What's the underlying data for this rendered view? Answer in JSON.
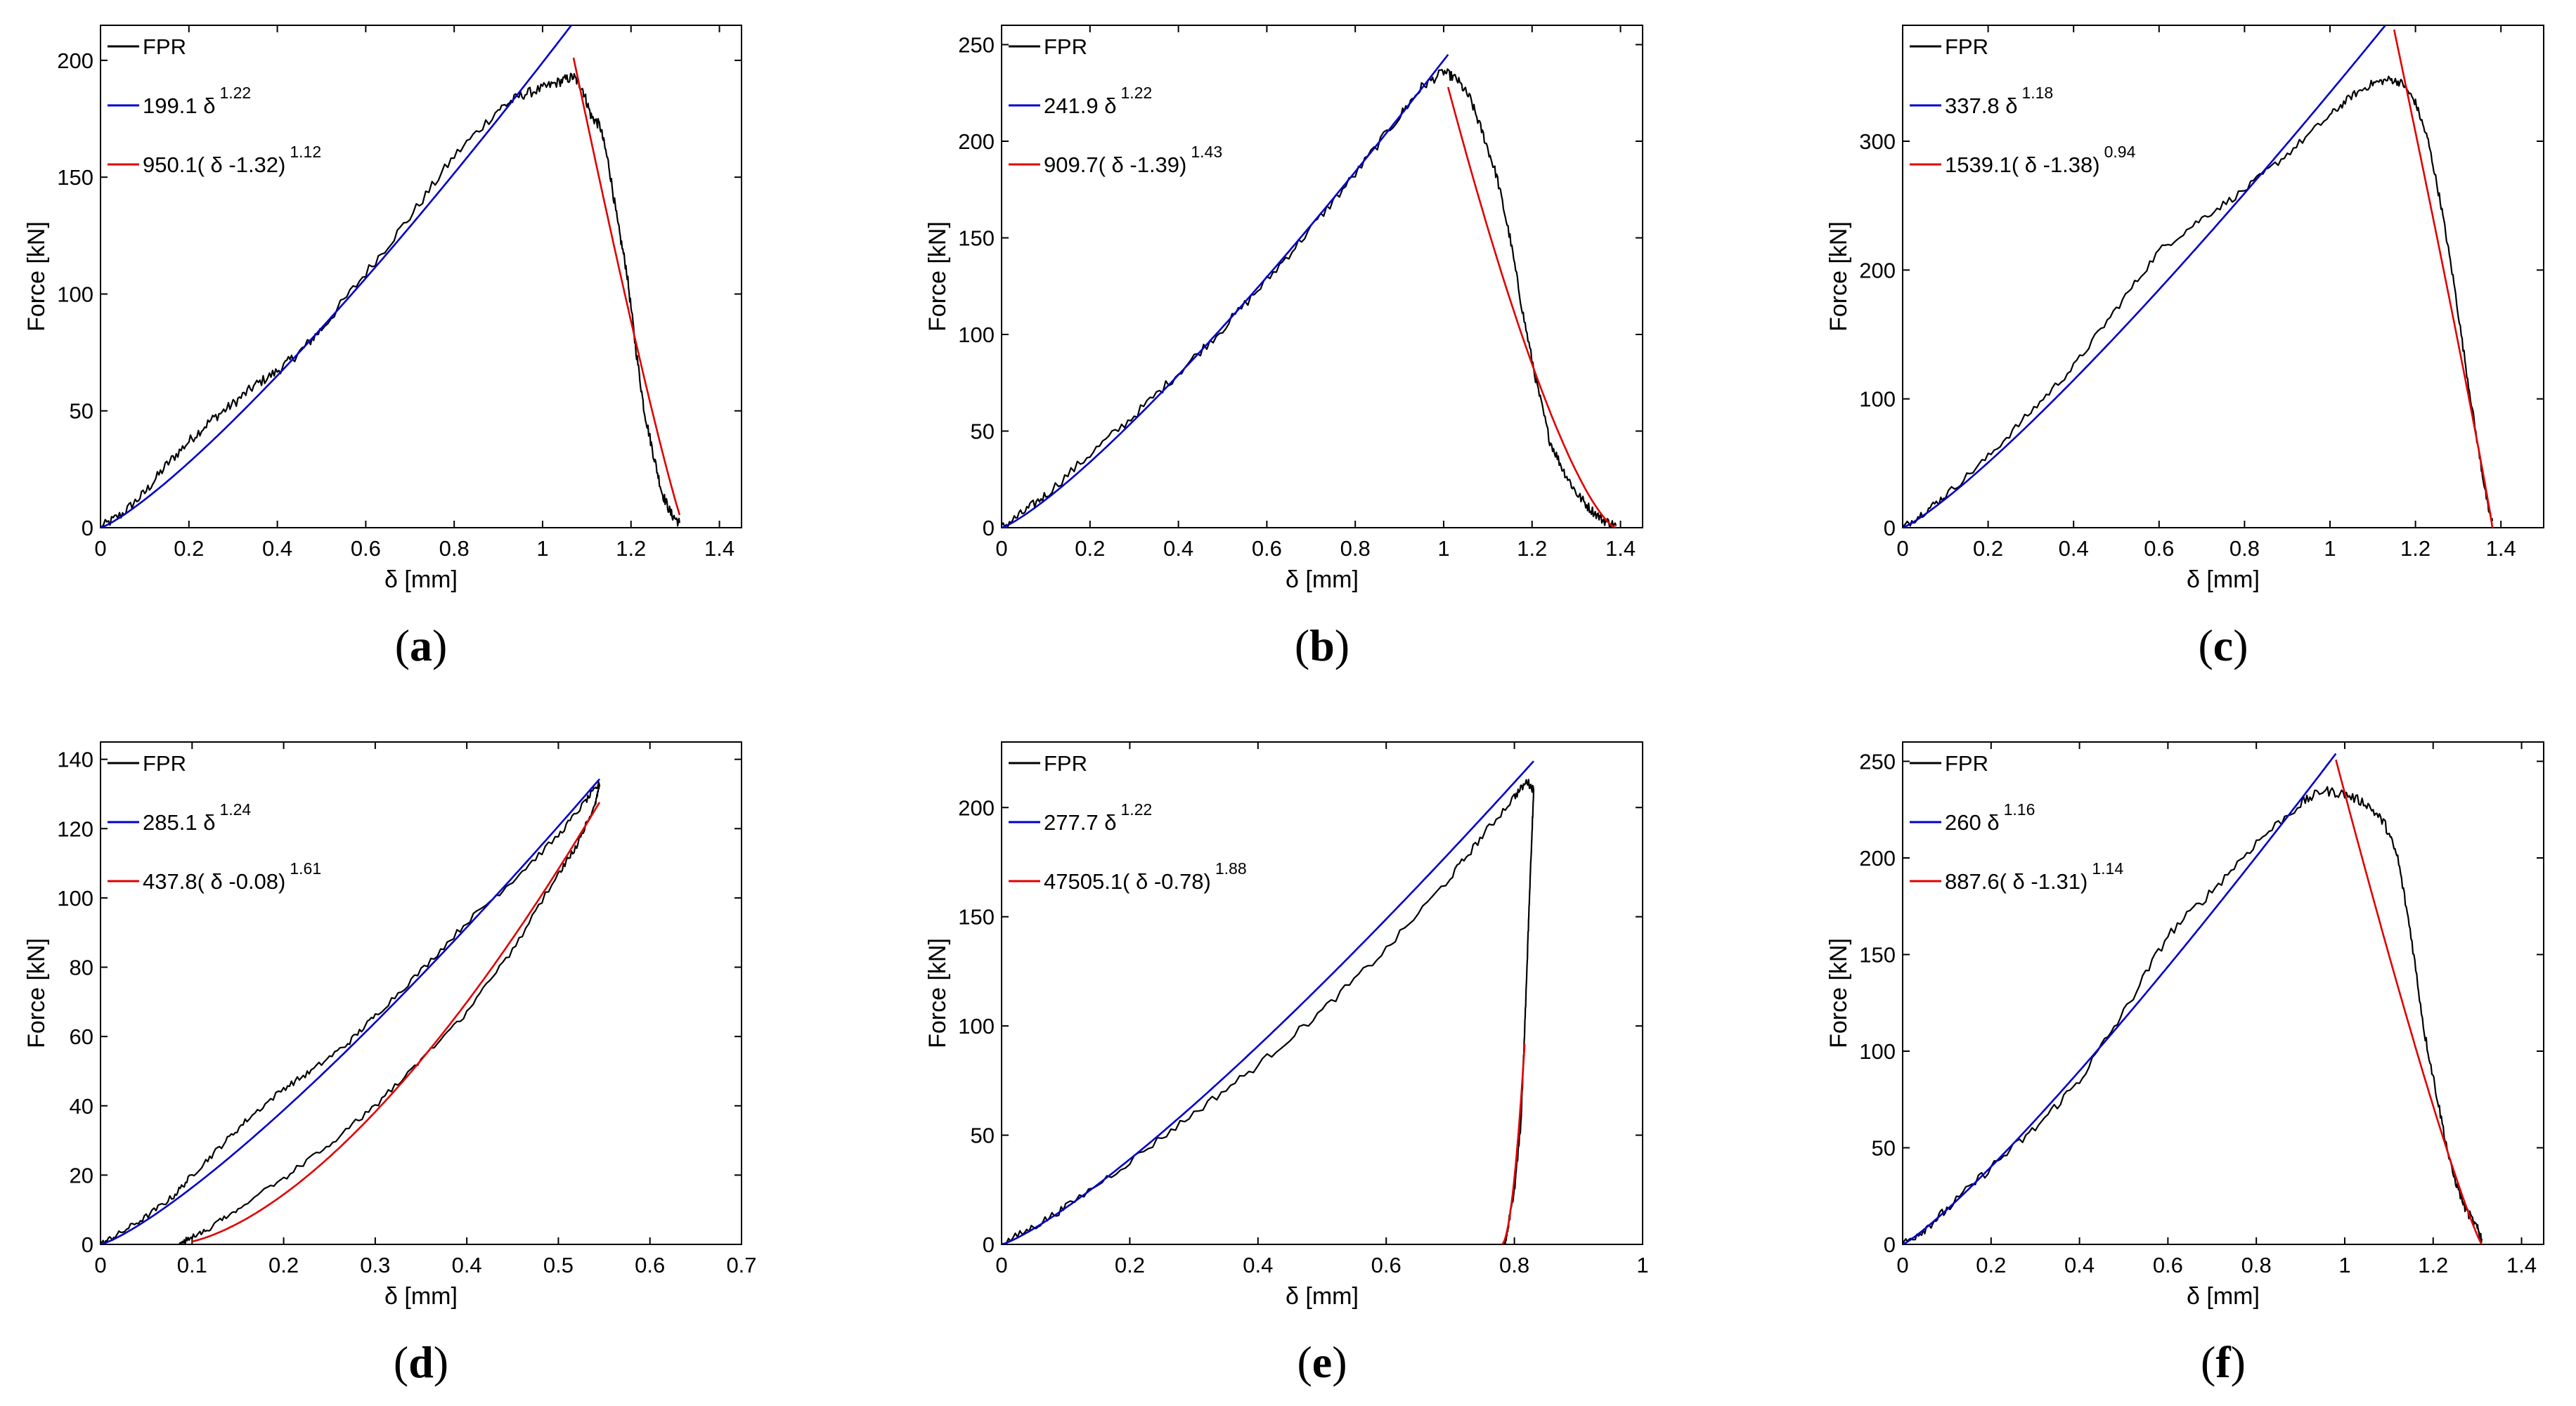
{
  "figure": {
    "colors": {
      "measured": "#000000",
      "fit_loading": "#0000cc",
      "fit_unloading": "#e00000",
      "axes": "#000000",
      "background": "#ffffff"
    }
  },
  "chart_data": [
    {
      "type": "line",
      "panel": "a",
      "xlabel": "δ [mm]",
      "ylabel": "Force [kN]",
      "xlim": [
        0,
        1.45
      ],
      "ylim": [
        0,
        215
      ],
      "xticks": [
        0,
        0.2,
        0.4,
        0.6,
        0.8,
        1,
        1.2,
        1.4
      ],
      "xtick_labels": [
        "0",
        "0.2",
        "0.4",
        "0.6",
        "0.8",
        "1",
        "1.2",
        "1.4"
      ],
      "yticks": [
        0,
        50,
        100,
        150,
        200
      ],
      "ytick_labels": [
        "0",
        "50",
        "100",
        "150",
        "200"
      ],
      "legend": [
        {
          "name": "FPR",
          "coef": "FPR",
          "exp": ""
        },
        {
          "name": "fit1",
          "coef": "199.1 δ",
          "exp": "1.22"
        },
        {
          "name": "fit2",
          "coef": "950.1( δ -1.32)",
          "exp": "1.12"
        }
      ],
      "series": [
        {
          "name": "FPR",
          "color": "black",
          "x": [
            0,
            0.05,
            0.1,
            0.15,
            0.2,
            0.25,
            0.3,
            0.35,
            0.4,
            0.45,
            0.5,
            0.6,
            0.7,
            0.8,
            0.9,
            0.95,
            1.0,
            1.04,
            1.07,
            1.09,
            1.11,
            1.13,
            1.15,
            1.17,
            1.19,
            1.21,
            1.23,
            1.25,
            1.27,
            1.29,
            1.31
          ],
          "y": [
            0,
            6,
            15,
            27,
            37,
            46,
            53,
            61,
            67,
            75,
            85,
            109,
            133,
            159,
            179,
            185,
            188,
            191,
            193,
            188,
            176,
            172,
            155,
            130,
            110,
            78,
            50,
            32,
            15,
            6,
            2
          ],
          "noise": 2.2
        },
        {
          "name": "fit1",
          "color": "blue",
          "fn": "a*x^b",
          "a": 199.1,
          "b": 1.22,
          "x0": 0,
          "x1": 1.12
        },
        {
          "name": "fit2",
          "color": "red",
          "fn": "a*(c-x)^b",
          "a": 950.1,
          "b": 1.12,
          "c": 1.32,
          "x0": 1.07,
          "x1": 1.31
        }
      ]
    },
    {
      "type": "line",
      "panel": "b",
      "xlabel": "δ [mm]",
      "ylabel": "Force [kN]",
      "xlim": [
        0,
        1.45
      ],
      "ylim": [
        0,
        260
      ],
      "xticks": [
        0,
        0.2,
        0.4,
        0.6,
        0.8,
        1,
        1.2,
        1.4
      ],
      "xtick_labels": [
        "0",
        "0.2",
        "0.4",
        "0.6",
        "0.8",
        "1",
        "1.2",
        "1.4"
      ],
      "yticks": [
        0,
        50,
        100,
        150,
        200,
        250
      ],
      "ytick_labels": [
        "0",
        "50",
        "100",
        "150",
        "200",
        "250"
      ],
      "legend": [
        {
          "name": "FPR",
          "coef": "FPR",
          "exp": ""
        },
        {
          "name": "fit1",
          "coef": "241.9 δ",
          "exp": "1.22"
        },
        {
          "name": "fit2",
          "coef": "909.7( δ -1.39)",
          "exp": "1.43"
        }
      ],
      "series": [
        {
          "name": "FPR",
          "color": "black",
          "x": [
            0,
            0.05,
            0.1,
            0.2,
            0.3,
            0.4,
            0.5,
            0.6,
            0.7,
            0.8,
            0.9,
            0.95,
            1.0,
            1.03,
            1.06,
            1.09,
            1.12,
            1.15,
            1.18,
            1.21,
            1.24,
            1.27,
            1.3,
            1.33,
            1.36,
            1.39
          ],
          "y": [
            0,
            8,
            17,
            38,
            58,
            80,
            103,
            128,
            155,
            183,
            213,
            228,
            236,
            232,
            222,
            203,
            182,
            150,
            110,
            75,
            45,
            30,
            18,
            10,
            4,
            1
          ],
          "noise": 2.5
        },
        {
          "name": "fit1",
          "color": "blue",
          "fn": "a*x^b",
          "a": 241.9,
          "b": 1.22,
          "x0": 0,
          "x1": 1.01
        },
        {
          "name": "fit2",
          "color": "red",
          "fn": "a*(c-x)^b",
          "a": 909.7,
          "b": 1.43,
          "c": 1.39,
          "x0": 1.01,
          "x1": 1.39
        }
      ]
    },
    {
      "type": "line",
      "panel": "c",
      "xlabel": "δ [mm]",
      "ylabel": "Force [kN]",
      "xlim": [
        0,
        1.5
      ],
      "ylim": [
        0,
        390
      ],
      "xticks": [
        0,
        0.2,
        0.4,
        0.6,
        0.8,
        1,
        1.2,
        1.4
      ],
      "xtick_labels": [
        "0",
        "0.2",
        "0.4",
        "0.6",
        "0.8",
        "1",
        "1.2",
        "1.4"
      ],
      "yticks": [
        0,
        100,
        200,
        300
      ],
      "ytick_labels": [
        "0",
        "100",
        "200",
        "300"
      ],
      "legend": [
        {
          "name": "FPR",
          "coef": "FPR",
          "exp": ""
        },
        {
          "name": "fit1",
          "coef": "337.8 δ",
          "exp": "1.18"
        },
        {
          "name": "fit2",
          "coef": "1539.1( δ -1.38)",
          "exp": "0.94"
        }
      ],
      "series": [
        {
          "name": "FPR",
          "color": "black",
          "x": [
            0,
            0.05,
            0.1,
            0.2,
            0.3,
            0.4,
            0.5,
            0.6,
            0.7,
            0.8,
            0.9,
            1.0,
            1.05,
            1.1,
            1.14,
            1.17,
            1.2,
            1.23,
            1.26,
            1.29,
            1.32,
            1.35,
            1.37,
            1.38
          ],
          "y": [
            0,
            12,
            25,
            55,
            90,
            125,
            170,
            215,
            240,
            262,
            290,
            320,
            335,
            345,
            348,
            345,
            330,
            300,
            250,
            190,
            120,
            55,
            15,
            5
          ],
          "noise": 3
        },
        {
          "name": "fit1",
          "color": "blue",
          "fn": "a*x^b",
          "a": 337.8,
          "b": 1.18,
          "x0": 0,
          "x1": 1.14
        },
        {
          "name": "fit2",
          "color": "red",
          "fn": "a*(c-x)^b",
          "a": 1539.1,
          "b": 0.94,
          "c": 1.38,
          "x0": 1.15,
          "x1": 1.38
        }
      ]
    },
    {
      "type": "line",
      "panel": "d",
      "xlabel": "δ [mm]",
      "ylabel": "Force [kN]",
      "xlim": [
        0,
        0.7
      ],
      "ylim": [
        0,
        145
      ],
      "xticks": [
        0,
        0.1,
        0.2,
        0.3,
        0.4,
        0.5,
        0.6,
        0.7
      ],
      "xtick_labels": [
        "0",
        "0.1",
        "0.2",
        "0.3",
        "0.4",
        "0.5",
        "0.6",
        "0.7"
      ],
      "yticks": [
        0,
        20,
        40,
        60,
        80,
        100,
        120,
        140
      ],
      "ytick_labels": [
        "0",
        "20",
        "40",
        "60",
        "80",
        "100",
        "120",
        "140"
      ],
      "legend": [
        {
          "name": "FPR",
          "coef": "FPR",
          "exp": ""
        },
        {
          "name": "fit1",
          "coef": "285.1 δ",
          "exp": "1.24"
        },
        {
          "name": "fit2",
          "coef": "437.8( δ -0.08)",
          "exp": "1.61"
        }
      ],
      "series": [
        {
          "name": "FPR",
          "color": "black",
          "x": [
            0,
            0.02,
            0.05,
            0.08,
            0.1,
            0.13,
            0.16,
            0.2,
            0.23,
            0.27,
            0.3,
            0.35,
            0.4,
            0.45,
            0.5,
            0.53,
            0.545,
            0.54,
            0.52,
            0.5,
            0.45,
            0.4,
            0.35,
            0.3,
            0.25,
            0.2,
            0.15,
            0.12,
            0.1,
            0.085
          ],
          "y": [
            0,
            3,
            8,
            14,
            20,
            28,
            36,
            45,
            50,
            58,
            66,
            79,
            93,
            105,
            118,
            128,
            133,
            127,
            115,
            107,
            85,
            67,
            53,
            40,
            29,
            19,
            10,
            5,
            2,
            0
          ],
          "noise": 0.9
        },
        {
          "name": "fit1",
          "color": "blue",
          "fn": "a*x^b",
          "a": 285.1,
          "b": 1.24,
          "x0": 0,
          "x1": 0.545
        },
        {
          "name": "fit2",
          "color": "red",
          "fn": "a*(x-c)^b",
          "a": 437.8,
          "b": 1.61,
          "c": 0.08,
          "x0": 0.1,
          "x1": 0.545
        }
      ]
    },
    {
      "type": "line",
      "panel": "e",
      "xlabel": "δ [mm]",
      "ylabel": "Force [kN]",
      "xlim": [
        0,
        1.0
      ],
      "ylim": [
        0,
        230
      ],
      "xticks": [
        0,
        0.2,
        0.4,
        0.6,
        0.8,
        1
      ],
      "xtick_labels": [
        "0",
        "0.2",
        "0.4",
        "0.6",
        "0.8",
        "1"
      ],
      "yticks": [
        0,
        50,
        100,
        150,
        200
      ],
      "ytick_labels": [
        "0",
        "50",
        "100",
        "150",
        "200"
      ],
      "legend": [
        {
          "name": "FPR",
          "coef": "FPR",
          "exp": ""
        },
        {
          "name": "fit1",
          "coef": "277.7 δ",
          "exp": "1.22"
        },
        {
          "name": "fit2",
          "coef": "47505.1( δ -0.78)",
          "exp": "1.88"
        }
      ],
      "series": [
        {
          "name": "FPR",
          "color": "black",
          "x": [
            0,
            0.05,
            0.1,
            0.2,
            0.3,
            0.4,
            0.5,
            0.6,
            0.7,
            0.75,
            0.8,
            0.82,
            0.83,
            0.825,
            0.82,
            0.815,
            0.81,
            0.8,
            0.79,
            0.785
          ],
          "y": [
            0,
            8,
            17,
            38,
            60,
            82,
            107,
            135,
            168,
            187,
            205,
            212,
            208,
            170,
            130,
            90,
            55,
            25,
            8,
            0
          ],
          "noise": 1.8
        },
        {
          "name": "fit1",
          "color": "blue",
          "fn": "a*x^b",
          "a": 277.7,
          "b": 1.22,
          "x0": 0,
          "x1": 0.83
        },
        {
          "name": "fit2",
          "color": "red",
          "fn": "a*(x-c)^b",
          "a": 47505.1,
          "b": 1.88,
          "c": 0.78,
          "x0": 0.78,
          "x1": 0.816
        }
      ]
    },
    {
      "type": "line",
      "panel": "f",
      "xlabel": "δ [mm]",
      "ylabel": "Force [kN]",
      "xlim": [
        0,
        1.45
      ],
      "ylim": [
        0,
        260
      ],
      "xticks": [
        0,
        0.2,
        0.4,
        0.6,
        0.8,
        1,
        1.2,
        1.4
      ],
      "xtick_labels": [
        "0",
        "0.2",
        "0.4",
        "0.6",
        "0.8",
        "1",
        "1.2",
        "1.4"
      ],
      "yticks": [
        0,
        50,
        100,
        150,
        200,
        250
      ],
      "ytick_labels": [
        "0",
        "50",
        "100",
        "150",
        "200",
        "250"
      ],
      "legend": [
        {
          "name": "FPR",
          "coef": "FPR",
          "exp": ""
        },
        {
          "name": "fit1",
          "coef": "260 δ",
          "exp": "1.16"
        },
        {
          "name": "fit2",
          "coef": "887.6( δ -1.31)",
          "exp": "1.14"
        }
      ],
      "series": [
        {
          "name": "FPR",
          "color": "black",
          "x": [
            0,
            0.05,
            0.1,
            0.2,
            0.3,
            0.4,
            0.5,
            0.6,
            0.7,
            0.8,
            0.9,
            0.95,
            1.0,
            1.05,
            1.09,
            1.12,
            1.15,
            1.18,
            1.21,
            1.24,
            1.27,
            1.3,
            1.31
          ],
          "y": [
            0,
            8,
            18,
            40,
            60,
            85,
            120,
            160,
            183,
            208,
            228,
            235,
            233,
            228,
            218,
            200,
            160,
            110,
            75,
            40,
            20,
            8,
            3
          ],
          "noise": 2.5
        },
        {
          "name": "fit1",
          "color": "blue",
          "fn": "a*x^b",
          "a": 260,
          "b": 1.16,
          "x0": 0,
          "x1": 0.98
        },
        {
          "name": "fit2",
          "color": "red",
          "fn": "a*(c-x)^b",
          "a": 887.6,
          "b": 1.14,
          "c": 1.31,
          "x0": 0.98,
          "x1": 1.31
        }
      ]
    }
  ],
  "panel_labels": [
    {
      "open": "(",
      "letter": "a",
      "close": ")"
    },
    {
      "open": "(",
      "letter": "b",
      "close": ")"
    },
    {
      "open": "(",
      "letter": "c",
      "close": ")"
    },
    {
      "open": "(",
      "letter": "d",
      "close": ")"
    },
    {
      "open": "(",
      "letter": "e",
      "close": ")"
    },
    {
      "open": "(",
      "letter": "f",
      "close": ")"
    }
  ]
}
